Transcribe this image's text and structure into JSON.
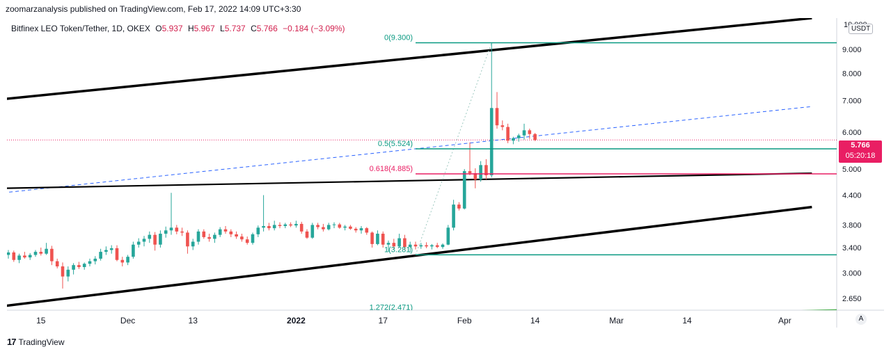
{
  "header": {
    "published": "zoomarzanalysis published on TradingView.com, Feb 17, 2022 14:09 UTC+3:30"
  },
  "legend": {
    "symbol": "Bitfinex LEO Token/Tether, 1D, OKEX",
    "open_label": "O",
    "open": "5.937",
    "high_label": "H",
    "high": "5.967",
    "low_label": "L",
    "low": "5.737",
    "close_label": "C",
    "close": "5.766",
    "change": "−0.184 (−3.09%)"
  },
  "price_scale": {
    "currency": "USDT",
    "current_price": "5.766",
    "countdown": "05:20:18",
    "top_cut": "10.000"
  },
  "footer": {
    "brand": "TradingView",
    "logo": "17"
  },
  "auto_button": "A",
  "colors": {
    "up": "#26a69a",
    "down": "#ef5350",
    "fib": "#089981",
    "fib_highlight": "#e91e63",
    "channel": "#000000",
    "trend_dash": "#2962ff",
    "current": "#e91e63"
  },
  "chart_data": {
    "type": "candlestick",
    "title": "Bitfinex LEO Token/Tether, 1D, OKEX",
    "yscale": "log",
    "ylim": [
      2.5,
      10.5
    ],
    "y_ticks": [
      "9.000",
      "8.000",
      "7.000",
      "6.000",
      "5.000",
      "4.400",
      "3.800",
      "3.400",
      "3.000",
      "2.650"
    ],
    "y_tick_values": [
      9.0,
      8.0,
      7.0,
      6.0,
      5.0,
      4.4,
      3.8,
      3.4,
      3.0,
      2.65
    ],
    "x_ticks": [
      {
        "label": "15",
        "day": 6
      },
      {
        "label": "Dec",
        "day": 22
      },
      {
        "label": "13",
        "day": 34
      },
      {
        "label": "2022",
        "day": 53,
        "bold": true
      },
      {
        "label": "17",
        "day": 69
      },
      {
        "label": "Feb",
        "day": 84
      },
      {
        "label": "14",
        "day": 97
      },
      {
        "label": "Mar",
        "day": 112
      },
      {
        "label": "14",
        "day": 125
      },
      {
        "label": "Apr",
        "day": 143
      }
    ],
    "fib_levels": [
      {
        "label": "0(9.300)",
        "value": 9.3,
        "highlight": false
      },
      {
        "label": "0.5(5.524)",
        "value": 5.524,
        "highlight": false
      },
      {
        "label": "0.618(4.885)",
        "value": 4.885,
        "highlight": true
      },
      {
        "label": "1(3.281)",
        "value": 3.281,
        "highlight": false
      },
      {
        "label": "1.272(2.471)",
        "value": 2.471,
        "highlight": false
      }
    ],
    "channel_lines": [
      {
        "from": [
          -1,
          7.05
        ],
        "to": [
          148,
          10.5
        ]
      },
      {
        "from": [
          -1,
          4.55
        ],
        "to": [
          148,
          4.9
        ]
      },
      {
        "from": [
          -1,
          2.55
        ],
        "to": [
          148,
          4.15
        ]
      }
    ],
    "dashed_trend": {
      "from": [
        -1,
        4.45
      ],
      "to": [
        148,
        6.8
      ]
    },
    "fib_start_day": 75,
    "candles": [
      {
        "o": 3.28,
        "h": 3.36,
        "l": 3.22,
        "c": 3.32
      },
      {
        "o": 3.32,
        "h": 3.35,
        "l": 3.17,
        "c": 3.2
      },
      {
        "o": 3.2,
        "h": 3.3,
        "l": 3.15,
        "c": 3.27
      },
      {
        "o": 3.27,
        "h": 3.33,
        "l": 3.22,
        "c": 3.24
      },
      {
        "o": 3.24,
        "h": 3.31,
        "l": 3.2,
        "c": 3.28
      },
      {
        "o": 3.28,
        "h": 3.36,
        "l": 3.25,
        "c": 3.33
      },
      {
        "o": 3.33,
        "h": 3.4,
        "l": 3.27,
        "c": 3.3
      },
      {
        "o": 3.3,
        "h": 3.48,
        "l": 3.28,
        "c": 3.38
      },
      {
        "o": 3.38,
        "h": 3.43,
        "l": 3.12,
        "c": 3.18
      },
      {
        "o": 3.18,
        "h": 3.22,
        "l": 3.07,
        "c": 3.1
      },
      {
        "o": 3.1,
        "h": 3.16,
        "l": 2.78,
        "c": 2.95
      },
      {
        "o": 2.95,
        "h": 3.1,
        "l": 2.88,
        "c": 3.05
      },
      {
        "o": 3.05,
        "h": 3.15,
        "l": 2.98,
        "c": 3.12
      },
      {
        "o": 3.12,
        "h": 3.17,
        "l": 3.06,
        "c": 3.09
      },
      {
        "o": 3.09,
        "h": 3.16,
        "l": 3.05,
        "c": 3.14
      },
      {
        "o": 3.14,
        "h": 3.22,
        "l": 3.1,
        "c": 3.18
      },
      {
        "o": 3.18,
        "h": 3.26,
        "l": 3.13,
        "c": 3.22
      },
      {
        "o": 3.22,
        "h": 3.38,
        "l": 3.19,
        "c": 3.33
      },
      {
        "o": 3.33,
        "h": 3.42,
        "l": 3.28,
        "c": 3.36
      },
      {
        "o": 3.36,
        "h": 3.44,
        "l": 3.3,
        "c": 3.39
      },
      {
        "o": 3.39,
        "h": 3.44,
        "l": 3.18,
        "c": 3.2
      },
      {
        "o": 3.2,
        "h": 3.25,
        "l": 3.1,
        "c": 3.16
      },
      {
        "o": 3.16,
        "h": 3.28,
        "l": 3.12,
        "c": 3.25
      },
      {
        "o": 3.25,
        "h": 3.5,
        "l": 3.22,
        "c": 3.45
      },
      {
        "o": 3.45,
        "h": 3.56,
        "l": 3.4,
        "c": 3.5
      },
      {
        "o": 3.5,
        "h": 3.6,
        "l": 3.42,
        "c": 3.55
      },
      {
        "o": 3.55,
        "h": 3.68,
        "l": 3.48,
        "c": 3.62
      },
      {
        "o": 3.62,
        "h": 3.67,
        "l": 3.35,
        "c": 3.45
      },
      {
        "o": 3.45,
        "h": 3.7,
        "l": 3.4,
        "c": 3.64
      },
      {
        "o": 3.64,
        "h": 3.77,
        "l": 3.57,
        "c": 3.7
      },
      {
        "o": 3.7,
        "h": 4.45,
        "l": 3.62,
        "c": 3.75
      },
      {
        "o": 3.75,
        "h": 3.8,
        "l": 3.63,
        "c": 3.68
      },
      {
        "o": 3.68,
        "h": 3.75,
        "l": 3.6,
        "c": 3.66
      },
      {
        "o": 3.66,
        "h": 3.7,
        "l": 3.3,
        "c": 3.42
      },
      {
        "o": 3.42,
        "h": 3.55,
        "l": 3.36,
        "c": 3.5
      },
      {
        "o": 3.5,
        "h": 3.72,
        "l": 3.45,
        "c": 3.68
      },
      {
        "o": 3.68,
        "h": 3.72,
        "l": 3.55,
        "c": 3.58
      },
      {
        "o": 3.58,
        "h": 3.64,
        "l": 3.5,
        "c": 3.55
      },
      {
        "o": 3.55,
        "h": 3.66,
        "l": 3.48,
        "c": 3.62
      },
      {
        "o": 3.62,
        "h": 3.76,
        "l": 3.58,
        "c": 3.72
      },
      {
        "o": 3.72,
        "h": 3.78,
        "l": 3.64,
        "c": 3.68
      },
      {
        "o": 3.68,
        "h": 3.72,
        "l": 3.58,
        "c": 3.63
      },
      {
        "o": 3.63,
        "h": 3.68,
        "l": 3.55,
        "c": 3.59
      },
      {
        "o": 3.59,
        "h": 3.64,
        "l": 3.5,
        "c": 3.54
      },
      {
        "o": 3.54,
        "h": 3.59,
        "l": 3.45,
        "c": 3.48
      },
      {
        "o": 3.48,
        "h": 3.66,
        "l": 3.45,
        "c": 3.63
      },
      {
        "o": 3.63,
        "h": 3.79,
        "l": 3.58,
        "c": 3.75
      },
      {
        "o": 3.75,
        "h": 4.4,
        "l": 3.68,
        "c": 3.78
      },
      {
        "o": 3.78,
        "h": 3.84,
        "l": 3.7,
        "c": 3.74
      },
      {
        "o": 3.74,
        "h": 3.88,
        "l": 3.7,
        "c": 3.8
      },
      {
        "o": 3.8,
        "h": 3.85,
        "l": 3.74,
        "c": 3.78
      },
      {
        "o": 3.78,
        "h": 3.84,
        "l": 3.74,
        "c": 3.81
      },
      {
        "o": 3.81,
        "h": 3.85,
        "l": 3.76,
        "c": 3.79
      },
      {
        "o": 3.79,
        "h": 3.88,
        "l": 3.75,
        "c": 3.82
      },
      {
        "o": 3.82,
        "h": 3.86,
        "l": 3.64,
        "c": 3.68
      },
      {
        "o": 3.68,
        "h": 3.72,
        "l": 3.55,
        "c": 3.57
      },
      {
        "o": 3.57,
        "h": 3.84,
        "l": 3.55,
        "c": 3.8
      },
      {
        "o": 3.8,
        "h": 3.84,
        "l": 3.72,
        "c": 3.76
      },
      {
        "o": 3.76,
        "h": 3.82,
        "l": 3.68,
        "c": 3.72
      },
      {
        "o": 3.72,
        "h": 3.84,
        "l": 3.7,
        "c": 3.8
      },
      {
        "o": 3.8,
        "h": 3.85,
        "l": 3.74,
        "c": 3.81
      },
      {
        "o": 3.81,
        "h": 3.84,
        "l": 3.73,
        "c": 3.75
      },
      {
        "o": 3.75,
        "h": 3.8,
        "l": 3.7,
        "c": 3.77
      },
      {
        "o": 3.77,
        "h": 3.8,
        "l": 3.71,
        "c": 3.73
      },
      {
        "o": 3.73,
        "h": 3.76,
        "l": 3.66,
        "c": 3.7
      },
      {
        "o": 3.7,
        "h": 3.78,
        "l": 3.64,
        "c": 3.74
      },
      {
        "o": 3.74,
        "h": 3.76,
        "l": 3.62,
        "c": 3.66
      },
      {
        "o": 3.66,
        "h": 3.68,
        "l": 3.4,
        "c": 3.46
      },
      {
        "o": 3.46,
        "h": 3.7,
        "l": 3.44,
        "c": 3.64
      },
      {
        "o": 3.64,
        "h": 3.68,
        "l": 3.4,
        "c": 3.45
      },
      {
        "o": 3.45,
        "h": 3.52,
        "l": 3.33,
        "c": 3.48
      },
      {
        "o": 3.48,
        "h": 3.55,
        "l": 3.38,
        "c": 3.42
      },
      {
        "o": 3.42,
        "h": 3.64,
        "l": 3.4,
        "c": 3.56
      },
      {
        "o": 3.56,
        "h": 3.62,
        "l": 3.36,
        "c": 3.41
      },
      {
        "o": 3.41,
        "h": 3.5,
        "l": 3.32,
        "c": 3.45
      },
      {
        "o": 3.45,
        "h": 3.5,
        "l": 3.37,
        "c": 3.42
      },
      {
        "o": 3.42,
        "h": 3.48,
        "l": 3.38,
        "c": 3.44
      },
      {
        "o": 3.44,
        "h": 3.49,
        "l": 3.39,
        "c": 3.42
      },
      {
        "o": 3.42,
        "h": 3.46,
        "l": 3.37,
        "c": 3.44
      },
      {
        "o": 3.44,
        "h": 3.48,
        "l": 3.39,
        "c": 3.41
      },
      {
        "o": 3.41,
        "h": 3.47,
        "l": 3.38,
        "c": 3.45
      },
      {
        "o": 3.45,
        "h": 3.8,
        "l": 3.44,
        "c": 3.75
      },
      {
        "o": 3.75,
        "h": 4.3,
        "l": 3.7,
        "c": 4.2
      },
      {
        "o": 4.2,
        "h": 4.25,
        "l": 4.08,
        "c": 4.12
      },
      {
        "o": 4.12,
        "h": 5.0,
        "l": 4.1,
        "c": 4.95
      },
      {
        "o": 4.95,
        "h": 5.7,
        "l": 4.85,
        "c": 4.9
      },
      {
        "o": 4.9,
        "h": 5.02,
        "l": 4.55,
        "c": 4.75
      },
      {
        "o": 4.75,
        "h": 5.2,
        "l": 4.7,
        "c": 5.1
      },
      {
        "o": 5.1,
        "h": 5.25,
        "l": 4.75,
        "c": 4.85
      },
      {
        "o": 4.85,
        "h": 9.3,
        "l": 4.8,
        "c": 6.75
      },
      {
        "o": 6.75,
        "h": 7.3,
        "l": 6.1,
        "c": 6.2
      },
      {
        "o": 6.2,
        "h": 6.35,
        "l": 6.05,
        "c": 6.15
      },
      {
        "o": 6.15,
        "h": 6.25,
        "l": 5.68,
        "c": 5.75
      },
      {
        "o": 5.75,
        "h": 5.86,
        "l": 5.65,
        "c": 5.82
      },
      {
        "o": 5.82,
        "h": 5.95,
        "l": 5.72,
        "c": 5.9
      },
      {
        "o": 5.9,
        "h": 6.25,
        "l": 5.78,
        "c": 6.05
      },
      {
        "o": 6.05,
        "h": 6.1,
        "l": 5.8,
        "c": 5.94
      },
      {
        "o": 5.94,
        "h": 5.97,
        "l": 5.74,
        "c": 5.77
      }
    ]
  }
}
